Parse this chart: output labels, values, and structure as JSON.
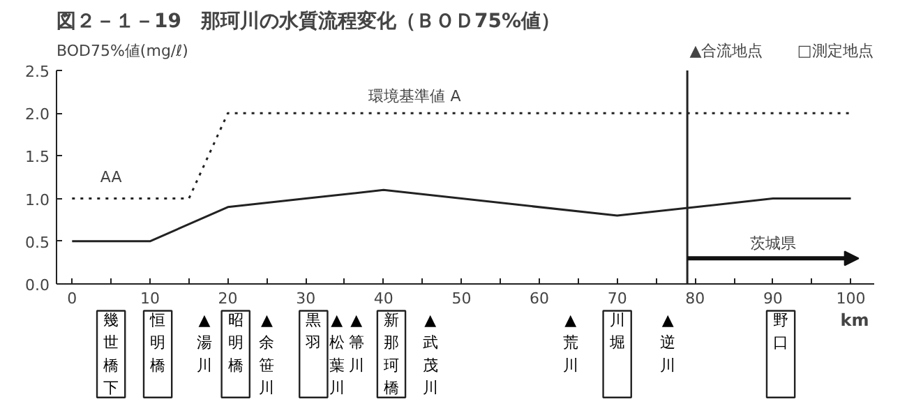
{
  "chart_data": {
    "type": "line",
    "title": "図２－１－19　那珂川の水質流程変化（ＢＯＤ75%値）",
    "ylabel": "BOD75%値(mg/ℓ)",
    "xlabel": "km",
    "xlim": [
      -2,
      103
    ],
    "ylim": [
      0,
      2.5
    ],
    "xticks": [
      0,
      {
        "value": 5,
        "label": null
      },
      10,
      {
        "value": 15,
        "label": null
      },
      20,
      {
        "value": 25,
        "label": null
      },
      30,
      {
        "value": 35,
        "label": null
      },
      40,
      {
        "value": 45,
        "label": null
      },
      50,
      {
        "value": 55,
        "label": null
      },
      60,
      {
        "value": 65,
        "label": null
      },
      70,
      {
        "value": 75,
        "label": null
      },
      80,
      {
        "value": 85,
        "label": null
      },
      90,
      {
        "value": 95,
        "label": null
      },
      100
    ],
    "yticks": [
      {
        "value": 0,
        "label": "0.0"
      },
      {
        "value": 0.5,
        "label": "0.5"
      },
      {
        "value": 1,
        "label": "1.0"
      },
      {
        "value": 1.5,
        "label": "1.5"
      },
      {
        "value": 2,
        "label": "2.0"
      },
      {
        "value": 2.5,
        "label": "2.5"
      }
    ],
    "series": [
      {
        "color": "#222222",
        "line_style": "solid",
        "x": [
          0,
          10,
          20,
          30,
          40,
          70,
          90,
          100
        ],
        "values": [
          0.5,
          0.5,
          0.9,
          1.0,
          1.1,
          0.8,
          1.0,
          1.0
        ]
      },
      {
        "color": "#222222",
        "line_style": "dotted",
        "x": [
          0,
          15,
          20,
          100
        ],
        "values": [
          1.0,
          1.0,
          2.0,
          2.0
        ]
      }
    ],
    "ref_lines": [
      {
        "axis": "x",
        "value": 79,
        "color": "#222222"
      }
    ],
    "grid": false,
    "annotations": [
      "▲合流地点",
      "□測定地点",
      "AA",
      "環境基準値 A",
      "茨城県",
      "幾世橋下",
      "恒明橋",
      "▲湯川",
      "昭明橋",
      "▲余笹川",
      "黒羽",
      "▲松葉川",
      "▲箒川",
      "新那珂橋",
      "▲武茂川",
      "▲荒川",
      "川堀",
      "▲逆川",
      "野口"
    ]
  }
}
